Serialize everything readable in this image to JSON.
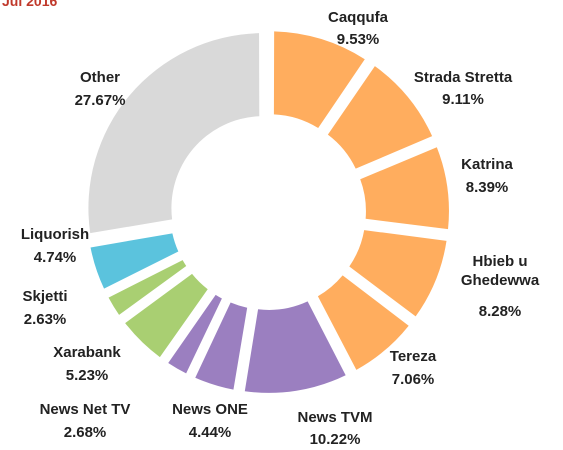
{
  "chart_data": {
    "type": "donut",
    "title": "Jul 2016",
    "categories": [
      "Caqqufa",
      "Strada Stretta",
      "Katrina",
      "Hbieb u Ghedewwa",
      "Tereza",
      "News TVM",
      "News ONE",
      "News Net TV",
      "Xarabank",
      "Skjetti",
      "Liquorish",
      "Other"
    ],
    "values": [
      9.53,
      9.11,
      8.39,
      8.28,
      7.06,
      10.22,
      4.44,
      2.68,
      5.23,
      2.63,
      4.74,
      27.67
    ],
    "value_labels": [
      "9.53%",
      "9.11%",
      "8.39%",
      "8.28%",
      "7.06%",
      "10.22%",
      "4.44%",
      "2.68%",
      "5.23%",
      "2.63%",
      "4.74%",
      "27.67%"
    ],
    "colors": [
      "#ffad5e",
      "#ffad5e",
      "#ffad5e",
      "#ffad5e",
      "#ffad5e",
      "#9b7fc0",
      "#9b7fc0",
      "#9b7fc0",
      "#a9cf72",
      "#a9cf72",
      "#5bc3dd",
      "#d9d9d9"
    ]
  }
}
